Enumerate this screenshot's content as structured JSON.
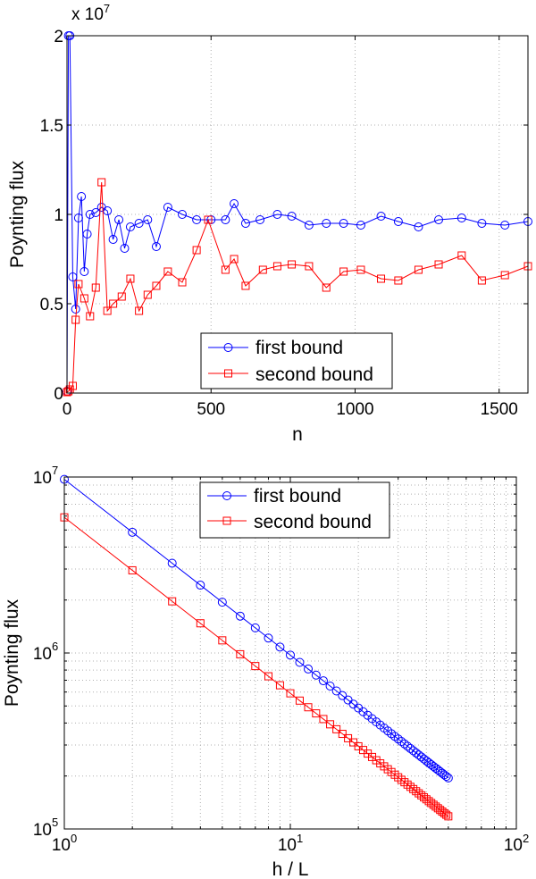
{
  "chart_data": [
    {
      "type": "line",
      "xlabel": "n",
      "ylabel": "Poynting flux",
      "y_multiplier": "x 10",
      "y_multiplier_exp": "7",
      "xlim": [
        0,
        1600
      ],
      "ylim": [
        0,
        2
      ],
      "x_ticks": [
        0,
        500,
        1000,
        1500
      ],
      "x_tick_labels": [
        "0",
        "500",
        "1000",
        "1500"
      ],
      "y_ticks": [
        0,
        0.5,
        1,
        1.5,
        2
      ],
      "y_tick_labels": [
        "0",
        "0.5",
        "1",
        "1.5",
        "2"
      ],
      "grid": true,
      "legend_position": "bottom-center",
      "series": [
        {
          "name": "first bound",
          "color": "#0000ff",
          "marker": "circle",
          "x": [
            0,
            5,
            10,
            20,
            30,
            40,
            50,
            60,
            70,
            80,
            100,
            120,
            140,
            160,
            180,
            200,
            220,
            250,
            280,
            310,
            350,
            400,
            450,
            500,
            550,
            580,
            620,
            670,
            730,
            780,
            840,
            900,
            960,
            1020,
            1090,
            1150,
            1220,
            1290,
            1370,
            1440,
            1520,
            1600
          ],
          "y": [
            0.01,
            2.0,
            2.0,
            0.65,
            0.47,
            0.98,
            1.1,
            0.68,
            0.89,
            1.0,
            1.01,
            1.04,
            1.02,
            0.86,
            0.97,
            0.81,
            0.93,
            0.95,
            0.97,
            0.82,
            1.04,
            1.0,
            0.97,
            0.97,
            0.97,
            1.06,
            0.95,
            0.97,
            1.0,
            0.99,
            0.94,
            0.95,
            0.95,
            0.94,
            0.99,
            0.96,
            0.93,
            0.97,
            0.98,
            0.95,
            0.94,
            0.96
          ]
        },
        {
          "name": "second bound",
          "color": "#ff0000",
          "marker": "square",
          "x": [
            0,
            5,
            10,
            20,
            30,
            40,
            60,
            80,
            100,
            120,
            140,
            160,
            190,
            220,
            250,
            280,
            310,
            350,
            400,
            450,
            490,
            550,
            580,
            620,
            680,
            730,
            780,
            840,
            900,
            960,
            1020,
            1090,
            1150,
            1220,
            1290,
            1370,
            1440,
            1520,
            1600
          ],
          "y": [
            0.005,
            0.01,
            0.02,
            0.04,
            0.41,
            0.61,
            0.53,
            0.43,
            0.59,
            1.18,
            0.46,
            0.5,
            0.54,
            0.64,
            0.46,
            0.55,
            0.6,
            0.68,
            0.62,
            0.8,
            0.97,
            0.69,
            0.75,
            0.6,
            0.69,
            0.71,
            0.72,
            0.71,
            0.59,
            0.68,
            0.69,
            0.64,
            0.63,
            0.69,
            0.72,
            0.77,
            0.63,
            0.66,
            0.71
          ]
        }
      ]
    },
    {
      "type": "line",
      "scale": "log-log",
      "xlabel": "h / L",
      "ylabel": "Poynting flux",
      "xlim": [
        1,
        100
      ],
      "ylim": [
        100000,
        10000000
      ],
      "x_ticks": [
        1,
        10,
        100
      ],
      "x_tick_bases": [
        "10",
        "10",
        "10"
      ],
      "x_tick_exps": [
        "0",
        "1",
        "2"
      ],
      "y_ticks": [
        100000,
        1000000,
        10000000
      ],
      "y_tick_bases": [
        "10",
        "10",
        "10"
      ],
      "y_tick_exps": [
        "5",
        "6",
        "7"
      ],
      "grid": true,
      "legend_position": "top-center",
      "series": [
        {
          "name": "first bound",
          "color": "#0000ff",
          "marker": "circle",
          "x_start": 1,
          "x_end": 50,
          "y_start": 9700000,
          "y_end": 195000
        },
        {
          "name": "second bound",
          "color": "#ff0000",
          "marker": "square",
          "x_start": 1,
          "x_end": 50,
          "y_start": 5900000,
          "y_end": 118000
        }
      ]
    }
  ]
}
